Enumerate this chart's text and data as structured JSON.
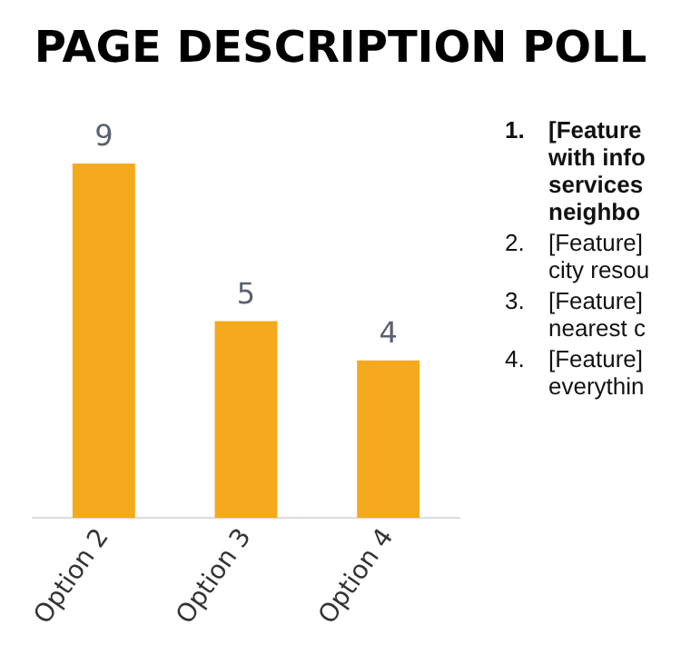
{
  "chart_data": {
    "type": "bar",
    "title": "PAGE DESCRIPTION POLL",
    "categories": [
      "Option 2",
      "Option 3",
      "Option 4"
    ],
    "values": [
      9,
      5,
      4
    ],
    "color": "#f5a91c",
    "data_labels": true,
    "grid": false,
    "legend": false,
    "tick_labels": "x",
    "annotations": [
      "1. [Feature with info services neighbo",
      "2. [Feature] city resou",
      "3. [Feature] nearest c",
      "4. [Feature] everythin"
    ]
  }
}
